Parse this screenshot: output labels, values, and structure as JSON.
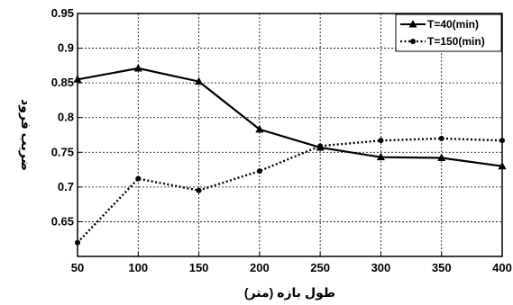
{
  "chart_data": {
    "type": "line",
    "title": "",
    "xlabel": "طول بازه (متر)",
    "ylabel": "ضریب فرود",
    "x": [
      50,
      100,
      150,
      200,
      250,
      300,
      350,
      400
    ],
    "xlim": [
      50,
      400
    ],
    "ylim": [
      0.6,
      0.95
    ],
    "xticks": [
      50,
      100,
      150,
      200,
      250,
      300,
      350,
      400
    ],
    "yticks": [
      0.65,
      0.7,
      0.75,
      0.8,
      0.85,
      0.9,
      0.95
    ],
    "grid": true,
    "legend_position": "top-right",
    "series": [
      {
        "name": "T=40(min)",
        "style": "solid",
        "marker": "triangle",
        "color": "#000000",
        "values": [
          0.855,
          0.871,
          0.852,
          0.783,
          0.757,
          0.743,
          0.742,
          0.73
        ]
      },
      {
        "name": "T=150(min)",
        "style": "dotted",
        "marker": "circle",
        "color": "#000000",
        "values": [
          0.62,
          0.712,
          0.695,
          0.723,
          0.759,
          0.767,
          0.77,
          0.767
        ]
      }
    ]
  }
}
